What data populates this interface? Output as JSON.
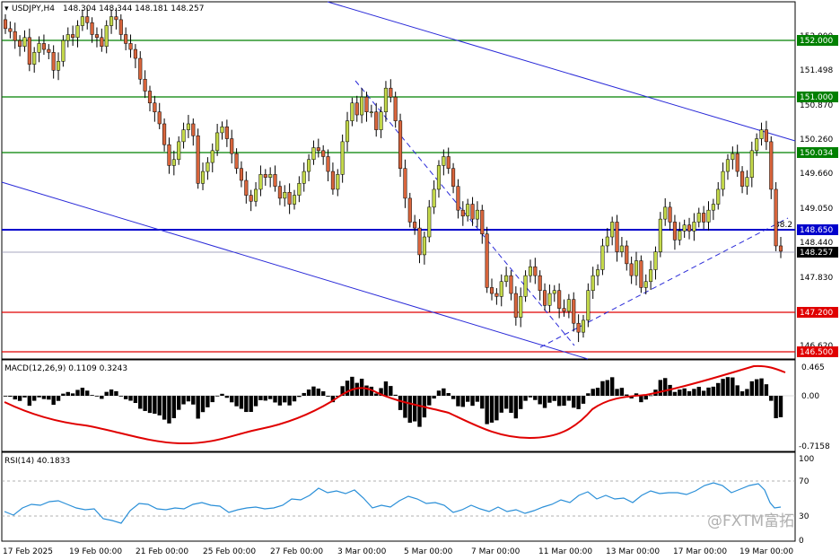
{
  "header": {
    "symbol": "USDJPY,H4",
    "ohlc": "148.304 148.344 148.181 148.257"
  },
  "macd": {
    "label": "MACD(12,26,9) 0.1109 0.3243",
    "ticks": [
      "0.465",
      "0.00",
      "-0.7158"
    ]
  },
  "rsi": {
    "label": "RSI(14) 40.1833",
    "ticks": [
      "100",
      "70",
      "30",
      "0"
    ]
  },
  "watermark": "FXTM富拓",
  "price_ticks": [
    "152.000",
    "151.498",
    "150.870",
    "150.260",
    "149.660",
    "149.050",
    "148.440",
    "147.830",
    "146.620"
  ],
  "levels": [
    {
      "label": "152.000",
      "value": 152.0,
      "color": "#008000"
    },
    {
      "label": "151.000",
      "value": 151.0,
      "color": "#008000"
    },
    {
      "label": "150.034",
      "value": 150.034,
      "color": "#008000"
    },
    {
      "label": "148.650",
      "value": 148.65,
      "color": "#0000cc"
    },
    {
      "label": "148.257",
      "value": 148.257,
      "color": "#000000"
    },
    {
      "label": "147.200",
      "value": 147.2,
      "color": "#e00000"
    },
    {
      "label": "146.500",
      "value": 146.5,
      "color": "#e00000"
    }
  ],
  "fib_label": "38.2",
  "colors": {
    "bull": "#c4d94a",
    "bear": "#d9653c",
    "level_green": "#008000",
    "level_blue": "#0000cc",
    "level_red": "#e00000",
    "trend": "#2a2ad8",
    "signal": "#e00000",
    "rsi": "#2a8fd8"
  },
  "chart_data": {
    "type": "candlestick",
    "symbol": "USDJPY",
    "timeframe": "H4",
    "x_labels": [
      "17 Feb 2025",
      "19 Feb 00:00",
      "21 Feb 00:00",
      "25 Feb 00:00",
      "27 Feb 00:00",
      "3 Mar 00:00",
      "5 Mar 00:00",
      "7 Mar 00:00",
      "11 Mar 00:00",
      "13 Mar 00:00",
      "17 Mar 00:00",
      "19 Mar 00:00"
    ],
    "ylim": [
      146.45,
      152.45
    ],
    "close": [
      152.0,
      151.95,
      151.8,
      151.7,
      151.85,
      151.4,
      151.6,
      151.75,
      151.65,
      151.6,
      151.3,
      151.45,
      151.8,
      151.9,
      151.85,
      152.05,
      152.2,
      152.1,
      151.9,
      151.85,
      151.7,
      152.05,
      152.2,
      152.15,
      151.9,
      151.75,
      151.65,
      151.5,
      151.15,
      150.95,
      150.75,
      150.6,
      150.4,
      150.05,
      149.7,
      149.8,
      150.1,
      150.3,
      150.4,
      150.2,
      149.4,
      149.6,
      149.75,
      149.95,
      150.25,
      150.35,
      150.15,
      149.9,
      149.65,
      149.45,
      149.2,
      149.1,
      149.3,
      149.55,
      149.5,
      149.55,
      149.35,
      149.15,
      149.25,
      149.05,
      149.2,
      149.4,
      149.6,
      149.8,
      150.0,
      149.95,
      149.85,
      149.6,
      149.3,
      149.55,
      150.1,
      150.45,
      150.75,
      150.55,
      150.85,
      150.6,
      150.6,
      150.3,
      150.6,
      151.0,
      150.85,
      150.45,
      149.65,
      149.15,
      148.75,
      148.65,
      148.2,
      148.5,
      149.0,
      149.3,
      149.7,
      149.85,
      149.65,
      149.35,
      148.95,
      148.85,
      149.05,
      148.8,
      148.95,
      148.55,
      147.65,
      147.55,
      147.5,
      147.75,
      147.85,
      147.55,
      147.15,
      147.5,
      147.85,
      148.0,
      147.85,
      147.6,
      147.35,
      147.55,
      147.6,
      147.3,
      147.25,
      147.45,
      147.05,
      146.9,
      147.1,
      147.6,
      147.85,
      147.95,
      148.35,
      148.5,
      148.75,
      148.25,
      148.35,
      148.05,
      147.85,
      148.1,
      147.65,
      147.75,
      147.95,
      148.25,
      148.8,
      149.0,
      148.75,
      148.45,
      148.6,
      148.7,
      148.6,
      148.75,
      148.9,
      148.75,
      148.95,
      149.05,
      149.3,
      149.6,
      149.8,
      149.9,
      149.6,
      149.35,
      149.5,
      149.95,
      150.15,
      150.3,
      150.1,
      149.3,
      148.35,
      148.26
    ]
  }
}
